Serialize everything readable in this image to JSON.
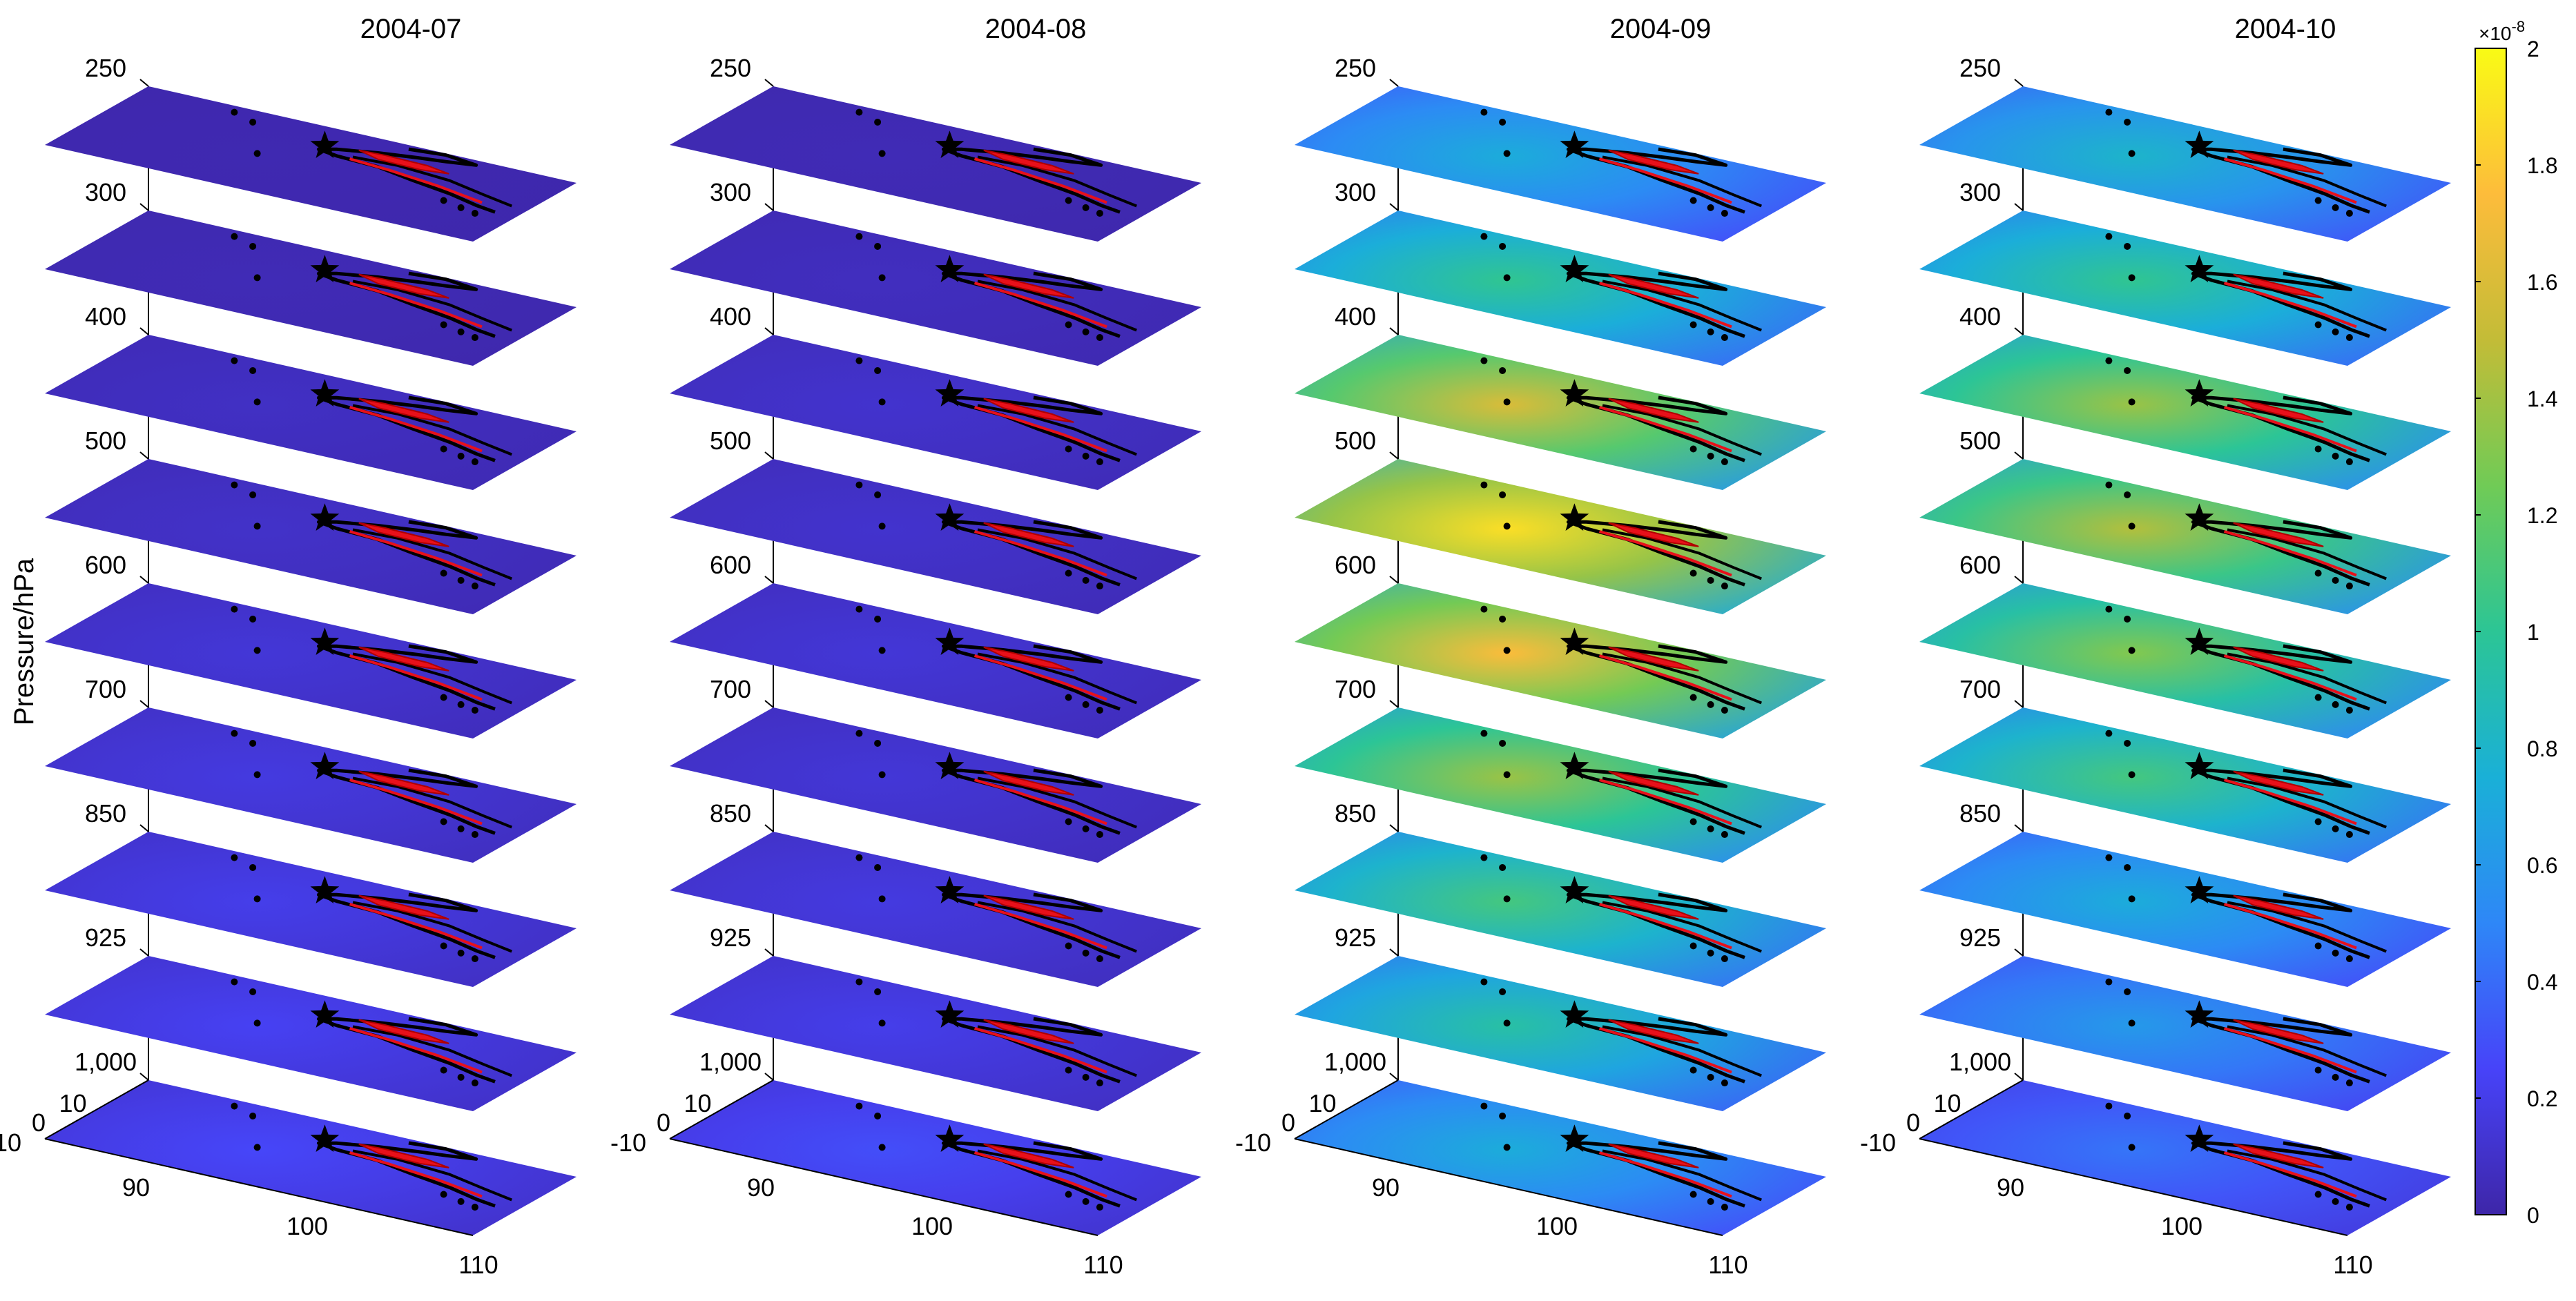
{
  "chart_data": {
    "type": "heatmap",
    "ylabel": "Pressure/hPa",
    "pressure_levels": [
      "250",
      "300",
      "400",
      "500",
      "600",
      "700",
      "850",
      "925",
      "1,000"
    ],
    "lat_ticks": [
      "10",
      "0",
      "-10"
    ],
    "lon_ticks": [
      "90",
      "100",
      "110"
    ],
    "lat_range": [
      -10,
      20
    ],
    "lon_range": [
      85,
      110
    ],
    "colorbar": {
      "min": 0,
      "max": 2,
      "exponent": "×10",
      "exponent_power": "-8",
      "ticks": [
        "2",
        "1.8",
        "1.6",
        "1.4",
        "1.2",
        "1",
        "0.8",
        "0.6",
        "0.4",
        "0.2",
        "0"
      ],
      "colormap": "parula",
      "colors": [
        "#3e26a8",
        "#4743f9",
        "#2e87f7",
        "#1ab0d7",
        "#2cc595",
        "#70cb56",
        "#c3bc37",
        "#fdbc3b",
        "#f9fb15"
      ]
    },
    "panels": [
      {
        "title": "2004-07",
        "level_mean": [
          0.02,
          0.03,
          0.06,
          0.07,
          0.1,
          0.12,
          0.14,
          0.16,
          0.18
        ]
      },
      {
        "title": "2004-08",
        "level_mean": [
          0.03,
          0.05,
          0.08,
          0.08,
          0.1,
          0.1,
          0.12,
          0.14,
          0.2
        ]
      },
      {
        "title": "2004-09",
        "level_mean": [
          0.5,
          0.7,
          1.1,
          1.3,
          1.2,
          0.95,
          0.75,
          0.65,
          0.5
        ]
      },
      {
        "title": "2004-10",
        "level_mean": [
          0.55,
          0.7,
          0.95,
          1.0,
          0.9,
          0.75,
          0.5,
          0.42,
          0.3
        ]
      }
    ],
    "markers": {
      "star": "black-star",
      "coastline": "black",
      "fault_lines": "red"
    }
  }
}
